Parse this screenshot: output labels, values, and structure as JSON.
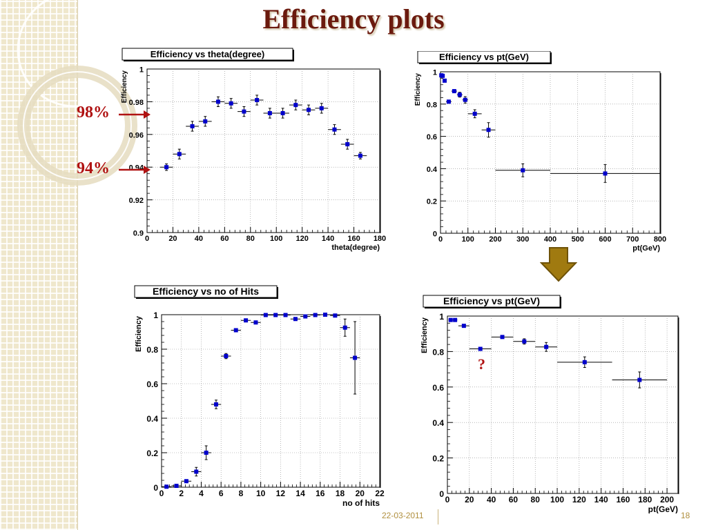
{
  "slide": {
    "title": "Efficiency plots",
    "callout_98": "98%",
    "callout_94": "94%",
    "question_mark": "?",
    "footer_date": "22-03-2011",
    "footer_page": "18"
  },
  "colors": {
    "title": "#6b1a0e",
    "callout": "#b01212",
    "marker": "#0000cc",
    "arrow": "#a07a10"
  },
  "chart_data": [
    {
      "id": "theta",
      "type": "scatter",
      "title": "Efficiency vs theta(degree)",
      "xlabel": "theta(degree)",
      "ylabel": "Efficiency",
      "xlim": [
        0,
        180
      ],
      "ylim": [
        0.9,
        1.0
      ],
      "xticks": [
        0,
        20,
        40,
        60,
        80,
        100,
        120,
        140,
        160,
        180
      ],
      "yticks": [
        0.9,
        0.92,
        0.94,
        0.96,
        0.98,
        1.0
      ],
      "ytick_labels": [
        "0.9",
        "0.92",
        "0.94",
        "0.96",
        "0.98",
        "1"
      ],
      "grid": true,
      "points": [
        {
          "x": 15,
          "xerr": 5,
          "y": 0.94,
          "yerr": 0.002
        },
        {
          "x": 25,
          "xerr": 5,
          "y": 0.948,
          "yerr": 0.003
        },
        {
          "x": 35,
          "xerr": 5,
          "y": 0.965,
          "yerr": 0.003
        },
        {
          "x": 45,
          "xerr": 5,
          "y": 0.968,
          "yerr": 0.003
        },
        {
          "x": 55,
          "xerr": 5,
          "y": 0.98,
          "yerr": 0.003
        },
        {
          "x": 65,
          "xerr": 5,
          "y": 0.979,
          "yerr": 0.003
        },
        {
          "x": 75,
          "xerr": 5,
          "y": 0.974,
          "yerr": 0.003
        },
        {
          "x": 85,
          "xerr": 5,
          "y": 0.981,
          "yerr": 0.003
        },
        {
          "x": 95,
          "xerr": 5,
          "y": 0.973,
          "yerr": 0.003
        },
        {
          "x": 105,
          "xerr": 5,
          "y": 0.973,
          "yerr": 0.003
        },
        {
          "x": 115,
          "xerr": 5,
          "y": 0.978,
          "yerr": 0.003
        },
        {
          "x": 125,
          "xerr": 5,
          "y": 0.975,
          "yerr": 0.003
        },
        {
          "x": 135,
          "xerr": 5,
          "y": 0.976,
          "yerr": 0.003
        },
        {
          "x": 145,
          "xerr": 5,
          "y": 0.963,
          "yerr": 0.003
        },
        {
          "x": 155,
          "xerr": 5,
          "y": 0.954,
          "yerr": 0.003
        },
        {
          "x": 165,
          "xerr": 5,
          "y": 0.947,
          "yerr": 0.002
        }
      ]
    },
    {
      "id": "pt_full",
      "type": "scatter",
      "title": "Efficiency vs pt(GeV)",
      "xlabel": "pt(GeV)",
      "ylabel": "Efficiency",
      "xlim": [
        0,
        800
      ],
      "ylim": [
        0,
        1.0
      ],
      "xticks": [
        0,
        100,
        200,
        300,
        400,
        500,
        600,
        700,
        800
      ],
      "yticks": [
        0,
        0.2,
        0.4,
        0.6,
        0.8,
        1.0
      ],
      "ytick_labels": [
        "0",
        "0.2",
        "0.4",
        "0.6",
        "0.8",
        "1"
      ],
      "grid": true,
      "points": [
        {
          "x": 3,
          "xerr": 2,
          "y": 0.978,
          "yerr": 0.005
        },
        {
          "x": 8,
          "xerr": 3,
          "y": 0.975,
          "yerr": 0.005
        },
        {
          "x": 15,
          "xerr": 4,
          "y": 0.945,
          "yerr": 0.01
        },
        {
          "x": 30,
          "xerr": 10,
          "y": 0.815,
          "yerr": 0.01
        },
        {
          "x": 50,
          "xerr": 10,
          "y": 0.88,
          "yerr": 0.01
        },
        {
          "x": 70,
          "xerr": 10,
          "y": 0.858,
          "yerr": 0.015
        },
        {
          "x": 90,
          "xerr": 10,
          "y": 0.826,
          "yerr": 0.02
        },
        {
          "x": 125,
          "xerr": 25,
          "y": 0.74,
          "yerr": 0.025
        },
        {
          "x": 175,
          "xerr": 25,
          "y": 0.64,
          "yerr": 0.045
        },
        {
          "x": 300,
          "xerr": 100,
          "y": 0.39,
          "yerr": 0.04
        },
        {
          "x": 600,
          "xerr": 200,
          "y": 0.37,
          "yerr": 0.055
        }
      ]
    },
    {
      "id": "hits",
      "type": "scatter",
      "title": "Efficiency vs no of Hits",
      "xlabel": "no of hits",
      "ylabel": "Efficiency",
      "xlim": [
        0,
        22
      ],
      "ylim": [
        0,
        1.0
      ],
      "xticks": [
        0,
        2,
        4,
        6,
        8,
        10,
        12,
        14,
        16,
        18,
        20,
        22
      ],
      "yticks": [
        0,
        0.2,
        0.4,
        0.6,
        0.8,
        1.0
      ],
      "ytick_labels": [
        "0",
        "0.2",
        "0.4",
        "0.6",
        "0.8",
        "1"
      ],
      "grid": true,
      "points": [
        {
          "x": 0.5,
          "xerr": 0.5,
          "y": 0.003,
          "yerr": 0.003
        },
        {
          "x": 1.5,
          "xerr": 0.5,
          "y": 0.008,
          "yerr": 0.005
        },
        {
          "x": 2.5,
          "xerr": 0.5,
          "y": 0.035,
          "yerr": 0.01
        },
        {
          "x": 3.5,
          "xerr": 0.5,
          "y": 0.09,
          "yerr": 0.025
        },
        {
          "x": 4.5,
          "xerr": 0.5,
          "y": 0.2,
          "yerr": 0.04
        },
        {
          "x": 5.5,
          "xerr": 0.5,
          "y": 0.48,
          "yerr": 0.025
        },
        {
          "x": 6.5,
          "xerr": 0.5,
          "y": 0.76,
          "yerr": 0.015
        },
        {
          "x": 7.5,
          "xerr": 0.5,
          "y": 0.91,
          "yerr": 0.01
        },
        {
          "x": 8.5,
          "xerr": 0.5,
          "y": 0.967,
          "yerr": 0.006
        },
        {
          "x": 9.5,
          "xerr": 0.5,
          "y": 0.955,
          "yerr": 0.006
        },
        {
          "x": 10.5,
          "xerr": 0.5,
          "y": 0.998,
          "yerr": 0.002
        },
        {
          "x": 11.5,
          "xerr": 0.5,
          "y": 0.998,
          "yerr": 0.002
        },
        {
          "x": 12.5,
          "xerr": 0.5,
          "y": 0.998,
          "yerr": 0.002
        },
        {
          "x": 13.5,
          "xerr": 0.5,
          "y": 0.975,
          "yerr": 0.006
        },
        {
          "x": 14.5,
          "xerr": 0.5,
          "y": 0.99,
          "yerr": 0.004
        },
        {
          "x": 15.5,
          "xerr": 0.5,
          "y": 0.998,
          "yerr": 0.002
        },
        {
          "x": 16.5,
          "xerr": 0.5,
          "y": 1.0,
          "yerr": 0.002
        },
        {
          "x": 17.5,
          "xerr": 0.5,
          "y": 0.995,
          "yerr": 0.004
        },
        {
          "x": 18.5,
          "xerr": 0.5,
          "y": 0.925,
          "yerr": 0.05
        },
        {
          "x": 19.5,
          "xerr": 0.5,
          "y": 0.75,
          "yerr": 0.21
        }
      ]
    },
    {
      "id": "pt_zoom",
      "type": "scatter",
      "title": "Efficiency vs pt(GeV)",
      "xlabel": "pt(GeV)",
      "ylabel": "Efficiency",
      "xlim": [
        0,
        210
      ],
      "ylim": [
        0,
        1.0
      ],
      "xticks": [
        0,
        20,
        40,
        60,
        80,
        100,
        120,
        140,
        160,
        180,
        200
      ],
      "yticks": [
        0,
        0.2,
        0.4,
        0.6,
        0.8,
        1.0
      ],
      "ytick_labels": [
        "0",
        "0.2",
        "0.4",
        "0.6",
        "0.8",
        "1"
      ],
      "grid": true,
      "points": [
        {
          "x": 3,
          "xerr": 2,
          "y": 0.978,
          "yerr": 0.005
        },
        {
          "x": 7,
          "xerr": 2,
          "y": 0.978,
          "yerr": 0.005
        },
        {
          "x": 15,
          "xerr": 5,
          "y": 0.945,
          "yerr": 0.008
        },
        {
          "x": 30,
          "xerr": 10,
          "y": 0.815,
          "yerr": 0.008
        },
        {
          "x": 50,
          "xerr": 10,
          "y": 0.882,
          "yerr": 0.01
        },
        {
          "x": 70,
          "xerr": 10,
          "y": 0.857,
          "yerr": 0.015
        },
        {
          "x": 90,
          "xerr": 10,
          "y": 0.826,
          "yerr": 0.025
        },
        {
          "x": 125,
          "xerr": 25,
          "y": 0.74,
          "yerr": 0.03
        },
        {
          "x": 175,
          "xerr": 25,
          "y": 0.64,
          "yerr": 0.045
        }
      ]
    }
  ]
}
